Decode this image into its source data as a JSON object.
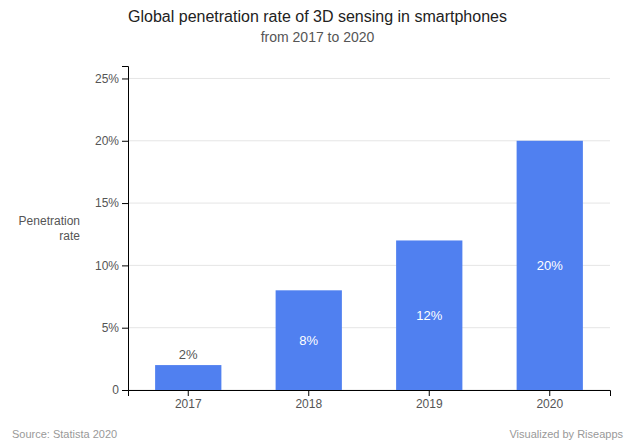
{
  "chart_data": {
    "type": "bar",
    "title": "Global penetration rate of 3D sensing in smartphones",
    "subtitle": "from 2017 to 2020",
    "ylabel": "Penetration\nrate",
    "categories": [
      "2017",
      "2018",
      "2019",
      "2020"
    ],
    "values": [
      2,
      8,
      12,
      20
    ],
    "value_labels": [
      "2%",
      "8%",
      "12%",
      "20%"
    ],
    "data_labels": true,
    "color": "#5080F0",
    "ylim": [
      0,
      26
    ],
    "yticks": [
      0,
      {
        "value": 5,
        "label": "5%"
      },
      {
        "value": 10,
        "label": "10%"
      },
      {
        "value": 15,
        "label": "15%"
      },
      {
        "value": 20,
        "label": "20%"
      },
      {
        "value": 25,
        "label": "25%"
      }
    ],
    "grid": true,
    "annotations": [
      "Source: Statista 2020",
      "Visualized by Riseapps"
    ]
  }
}
